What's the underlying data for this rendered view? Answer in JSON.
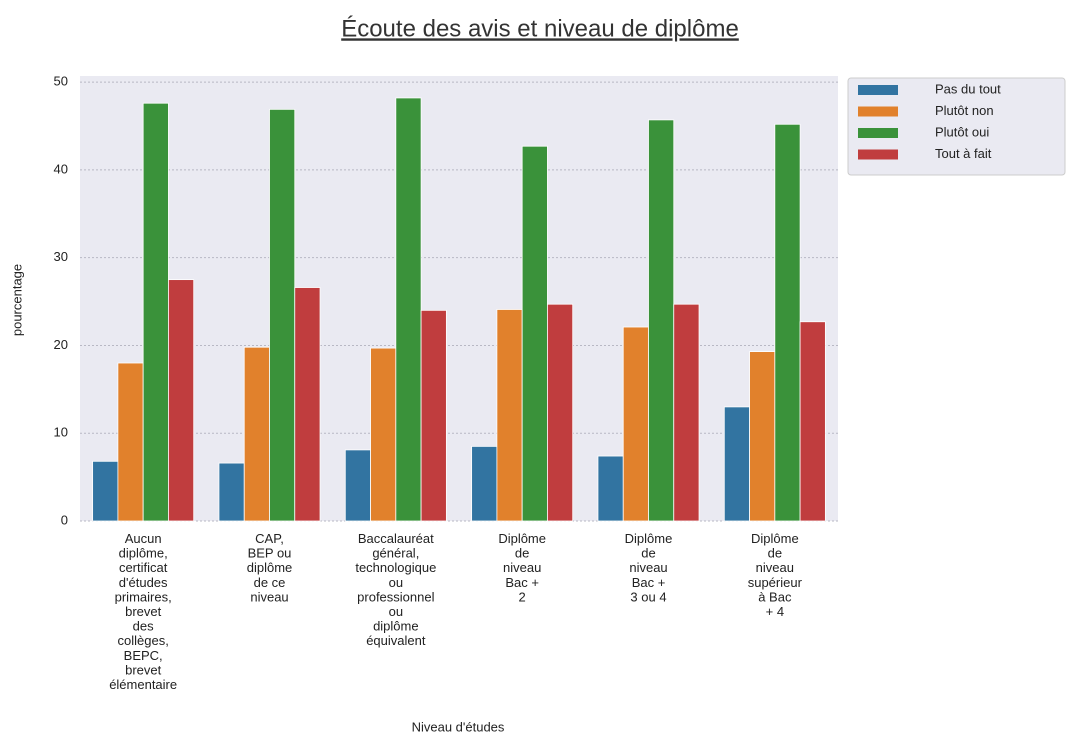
{
  "chart_data": {
    "type": "bar",
    "title": "Écoute des avis et niveau de diplôme",
    "xlabel": "Niveau d'études",
    "ylabel": "pourcentage",
    "categories": [
      "Aucun diplôme, certificat d'études primaires, brevet des collèges, BEPC, brevet élémentaire",
      "CAP, BEP ou diplôme de ce niveau",
      "Baccalauréat général, technologique ou professionnel ou diplôme équivalent",
      "Diplôme de niveau Bac + 2",
      "Diplôme de niveau Bac + 3 ou 4",
      "Diplôme de niveau supérieur à Bac + 4"
    ],
    "series": [
      {
        "name": "Pas du tout",
        "color": "#3274a1",
        "values": [
          6.8,
          6.6,
          8.1,
          8.5,
          7.4,
          13.0
        ]
      },
      {
        "name": "Plutôt non",
        "color": "#e1812c",
        "values": [
          18.0,
          19.8,
          19.7,
          24.1,
          22.1,
          19.3
        ]
      },
      {
        "name": "Plutôt oui",
        "color": "#3a923a",
        "values": [
          47.6,
          46.9,
          48.2,
          42.7,
          45.7,
          45.2
        ]
      },
      {
        "name": "Tout à fait",
        "color": "#c03d3e",
        "values": [
          27.5,
          26.6,
          24.0,
          24.7,
          24.7,
          22.7
        ]
      }
    ],
    "ylim": [
      0,
      50.7
    ],
    "yticks": [
      0,
      10,
      20,
      30,
      40,
      50
    ],
    "grid": true,
    "legend": "outside right"
  }
}
